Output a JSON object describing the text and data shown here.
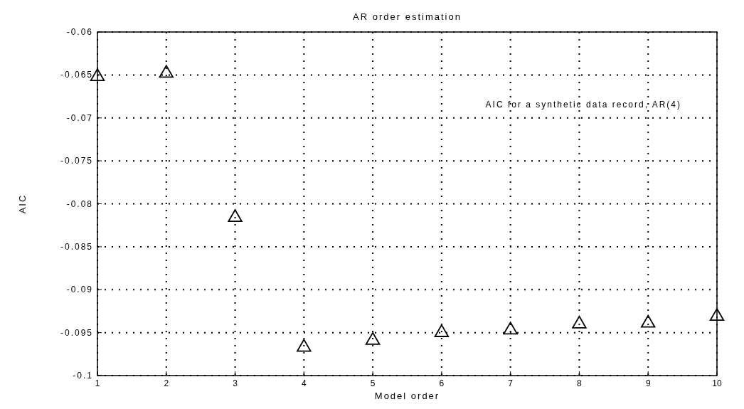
{
  "chart_data": {
    "type": "scatter",
    "title": "AR order estimation",
    "xlabel": "Model order",
    "ylabel": "AIC",
    "annotations": [
      "AIC for a synthetic data record, AR(4)"
    ],
    "x": [
      1,
      2,
      3,
      4,
      5,
      6,
      7,
      8,
      9,
      10
    ],
    "series": [
      {
        "color": "#000000",
        "values": [
          -0.0652,
          -0.0648,
          -0.0816,
          -0.0967,
          -0.0959,
          -0.095,
          -0.0947,
          -0.094,
          -0.0939,
          -0.0931
        ]
      }
    ],
    "xlim": [
      1,
      10
    ],
    "xticks": [
      1,
      2,
      3,
      4,
      5,
      6,
      7,
      8,
      9,
      10
    ],
    "ylim": [
      -0.1,
      -0.06
    ],
    "yticks": [
      -0.1,
      -0.095,
      -0.09,
      -0.085,
      -0.08,
      -0.075,
      -0.07,
      -0.065,
      -0.06
    ],
    "grid": true,
    "marker": "triangle"
  }
}
